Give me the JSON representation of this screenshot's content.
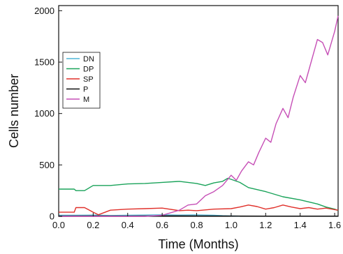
{
  "chart_data": {
    "type": "line",
    "xlabel": "Time (Months)",
    "ylabel": "Cells number",
    "xlim": [
      0,
      1.62
    ],
    "ylim": [
      0,
      2050
    ],
    "xticks": [
      "0.0",
      "0.2",
      "0.4",
      "0.6",
      "0.8",
      "1.0",
      "1.2",
      "1.4",
      "1.6"
    ],
    "yticks": [
      "0",
      "500",
      "1000",
      "1500",
      "2000"
    ],
    "legend_position": "left",
    "series": [
      {
        "name": "DN",
        "color": "#4fb6d6",
        "x": [
          0,
          0.1,
          0.2,
          0.3,
          0.4,
          0.5,
          0.6,
          0.7,
          0.8,
          0.9,
          0.95,
          1.0,
          1.05
        ],
        "y": [
          10,
          10,
          12,
          8,
          10,
          12,
          15,
          12,
          14,
          10,
          6,
          4,
          2
        ]
      },
      {
        "name": "DP",
        "color": "#1aa35a",
        "x": [
          0,
          0.09,
          0.1,
          0.15,
          0.2,
          0.3,
          0.4,
          0.5,
          0.6,
          0.7,
          0.8,
          0.85,
          0.9,
          0.95,
          0.98,
          1.0,
          1.05,
          1.1,
          1.2,
          1.3,
          1.4,
          1.5,
          1.55,
          1.6,
          1.62
        ],
        "y": [
          265,
          265,
          250,
          250,
          300,
          300,
          315,
          320,
          330,
          340,
          320,
          300,
          325,
          340,
          370,
          360,
          330,
          280,
          240,
          190,
          160,
          120,
          90,
          70,
          55
        ]
      },
      {
        "name": "SP",
        "color": "#e0302a",
        "x": [
          0,
          0.09,
          0.1,
          0.15,
          0.2,
          0.23,
          0.3,
          0.4,
          0.5,
          0.6,
          0.7,
          0.75,
          0.8,
          0.9,
          1.0,
          1.05,
          1.1,
          1.15,
          1.2,
          1.25,
          1.3,
          1.35,
          1.4,
          1.45,
          1.5,
          1.55,
          1.6,
          1.62
        ],
        "y": [
          40,
          40,
          85,
          85,
          40,
          15,
          60,
          70,
          75,
          80,
          55,
          60,
          55,
          70,
          75,
          90,
          110,
          95,
          70,
          85,
          110,
          90,
          75,
          85,
          70,
          80,
          65,
          60
        ]
      },
      {
        "name": "P",
        "color": "#111111",
        "x": [
          0,
          0.2,
          0.4,
          0.6,
          0.8,
          1.0,
          1.2,
          1.4,
          1.62
        ],
        "y": [
          3,
          4,
          3,
          5,
          4,
          3,
          2,
          2,
          2
        ]
      },
      {
        "name": "M",
        "color": "#c64fb6",
        "x": [
          0,
          0.5,
          0.6,
          0.7,
          0.75,
          0.8,
          0.85,
          0.9,
          0.95,
          1.0,
          1.03,
          1.06,
          1.1,
          1.13,
          1.16,
          1.2,
          1.23,
          1.26,
          1.3,
          1.33,
          1.36,
          1.4,
          1.43,
          1.46,
          1.5,
          1.53,
          1.56,
          1.6,
          1.62
        ],
        "y": [
          0,
          0,
          10,
          60,
          110,
          120,
          200,
          240,
          300,
          400,
          350,
          440,
          530,
          500,
          620,
          760,
          720,
          900,
          1050,
          960,
          1160,
          1370,
          1300,
          1480,
          1720,
          1690,
          1570,
          1800,
          1950
        ]
      }
    ]
  }
}
